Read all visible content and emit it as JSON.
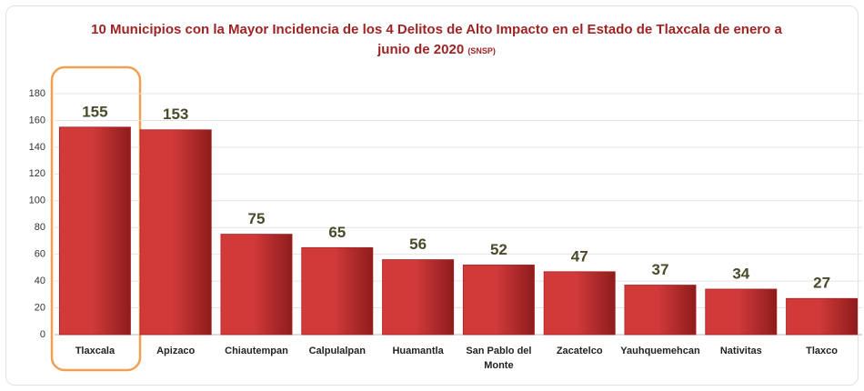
{
  "chart_data": {
    "type": "bar",
    "title": "10 Municipios con la Mayor Incidencia de los 4 Delitos de Alto Impacto en el Estado de Tlaxcala de enero a junio de 2020",
    "source": "(SNSP)",
    "categories": [
      "Tlaxcala",
      "Apizaco",
      "Chiautempan",
      "Calpulalpan",
      "Huamantla",
      "San Pablo del Monte",
      "Zacatelco",
      "Yauhquemehcan",
      "Nativitas",
      "Tlaxco"
    ],
    "values": [
      155,
      153,
      75,
      65,
      56,
      52,
      47,
      37,
      34,
      27
    ],
    "color": "#d23a3a",
    "ylim": [
      0,
      180
    ],
    "yticks": [
      0,
      20,
      40,
      60,
      80,
      100,
      120,
      140,
      160,
      180
    ],
    "grid": true
  }
}
